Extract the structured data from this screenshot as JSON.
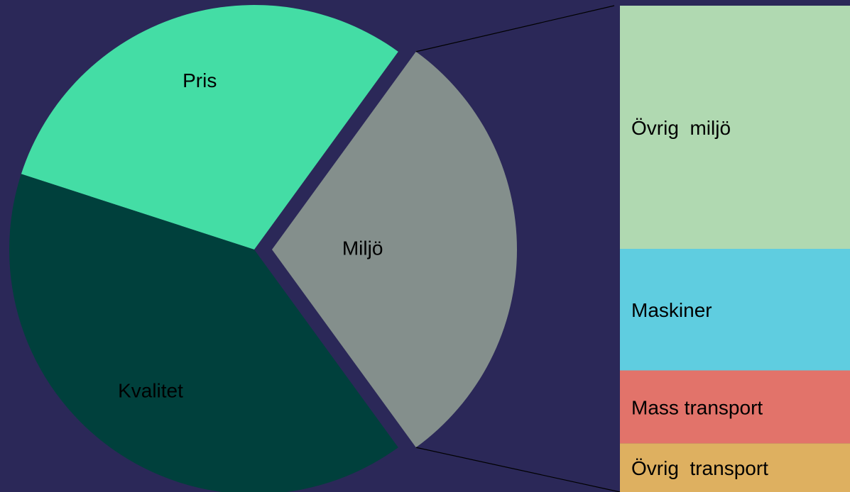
{
  "chart_data": {
    "type": "pie",
    "categories": [
      "Pris",
      "Kvalitet",
      "Miljö"
    ],
    "values": [
      30,
      40,
      30
    ],
    "colors": [
      "#44dda5",
      "#00403c",
      "#848f8c"
    ],
    "exploded": "Miljö",
    "bar": {
      "categories": [
        "Övrig  miljö",
        "Maskiner",
        "Mass transport",
        "Övrig  transport"
      ],
      "values": [
        50,
        25,
        15,
        10
      ],
      "colors": [
        "#b0d9b1",
        "#5fcde0",
        "#e2736a",
        "#deb060"
      ]
    }
  }
}
